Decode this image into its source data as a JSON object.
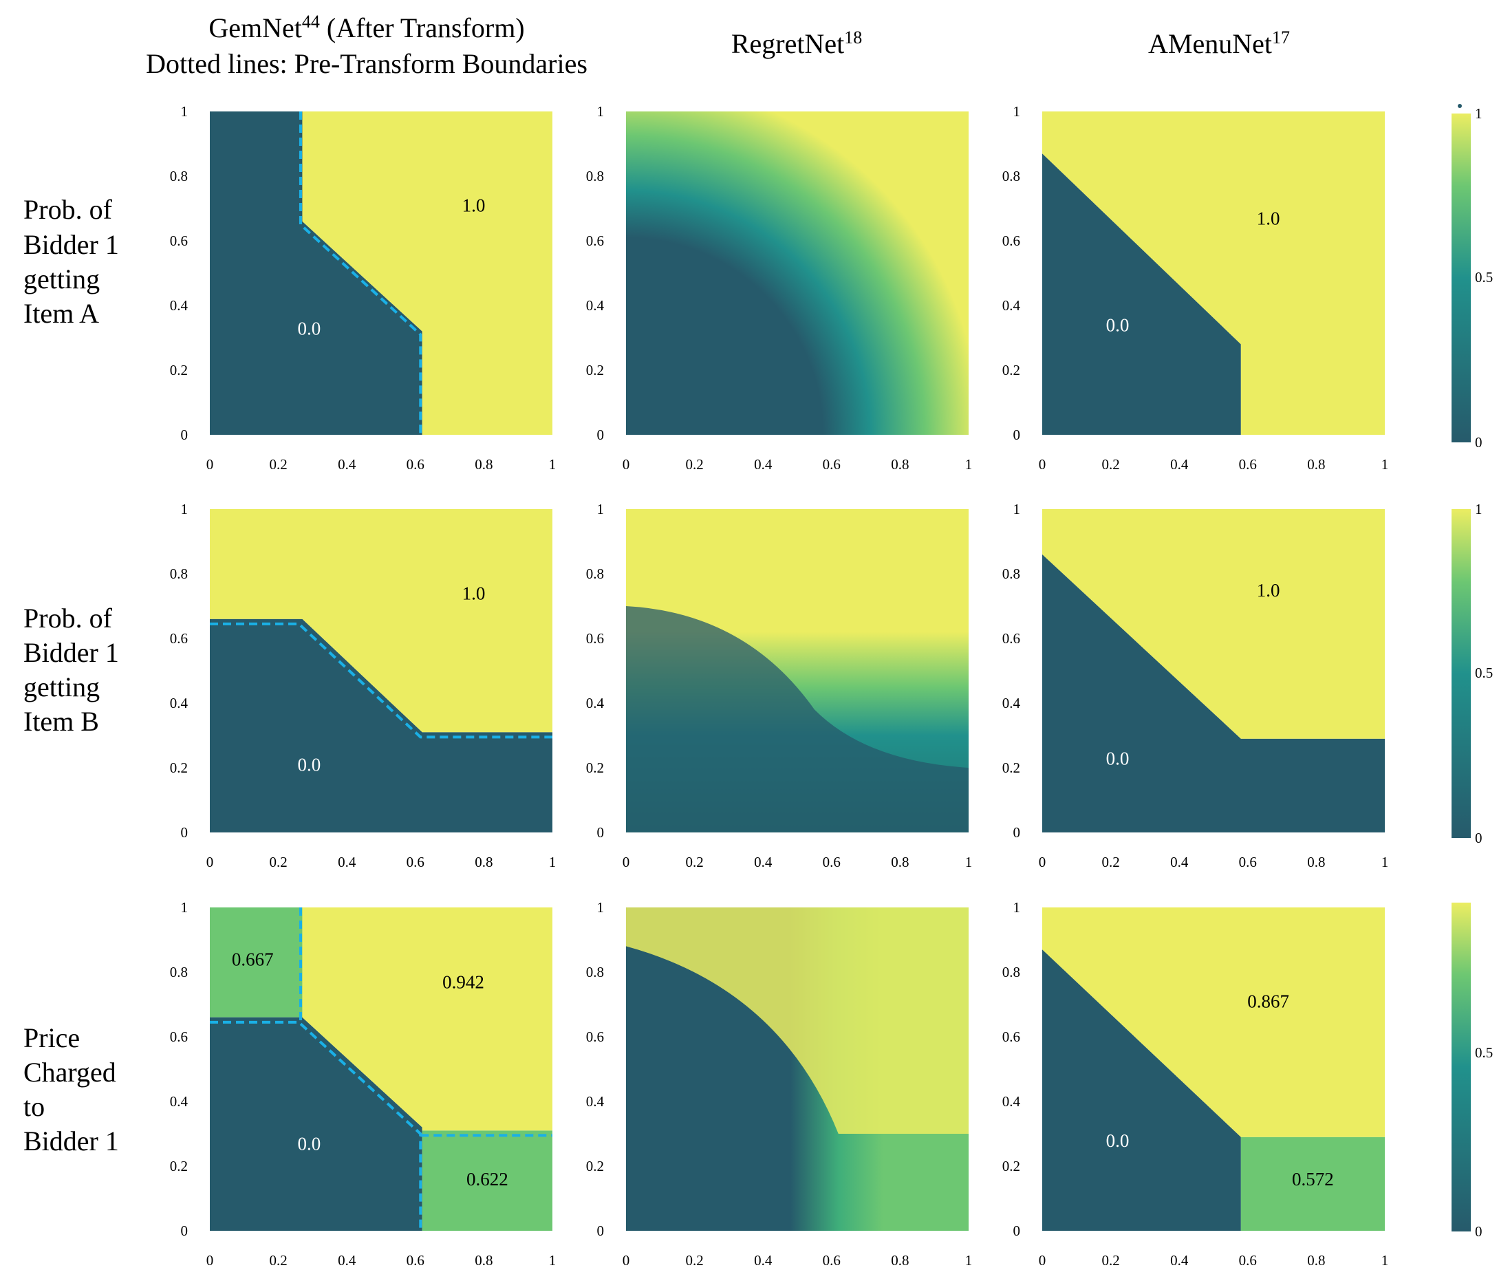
{
  "column_titles": [
    {
      "line1_main": "GemNet",
      "line1_sup": "44",
      "line1_tail": " (After Transform)",
      "line2": "Dotted lines: Pre-Transform Boundaries"
    },
    {
      "line1_main": "RegretNet",
      "line1_sup": "18",
      "line1_tail": "",
      "line2": ""
    },
    {
      "line1_main": "AMenuNet",
      "line1_sup": "17",
      "line1_tail": "",
      "line2": ""
    }
  ],
  "row_labels": [
    [
      "Prob. of",
      "Bidder 1",
      "getting",
      "Item A"
    ],
    [
      "Prob. of",
      "Bidder 1",
      "getting",
      "Item B"
    ],
    [
      "Price",
      "Charged",
      "to",
      "Bidder 1"
    ]
  ],
  "colors": {
    "dark": "#265a6b",
    "yellow": "#ebed62",
    "green": "#6dc772",
    "teal": "#21918c",
    "boundary": "#1ab0e6"
  },
  "colorbars": [
    {
      "top": "1",
      "mid": "0.5",
      "bottom": "0"
    },
    {
      "top": "1",
      "mid": "0.5",
      "bottom": "0"
    },
    {
      "top": "",
      "mid": "0.5",
      "bottom": "0"
    }
  ],
  "chart_data": {
    "type": "heatmap",
    "x_ticks": [
      "0",
      "0.2",
      "0.4",
      "0.6",
      "0.8",
      "1"
    ],
    "y_ticks": [
      "0",
      "0.2",
      "0.4",
      "0.6",
      "0.8",
      "1"
    ],
    "xlim": [
      0,
      1
    ],
    "ylim": [
      0,
      1
    ],
    "colorbar_range": [
      0,
      1
    ],
    "panels": [
      {
        "row": 0,
        "col": 0,
        "regions": [
          {
            "value": 0.0,
            "label": "0.0",
            "polygon": [
              [
                0,
                0
              ],
              [
                0.62,
                0
              ],
              [
                0.62,
                0.32
              ],
              [
                0.27,
                0.66
              ],
              [
                0.27,
                1
              ],
              [
                0,
                1
              ]
            ]
          },
          {
            "value": 1.0,
            "label": "1.0",
            "polygon": [
              [
                0.62,
                0
              ],
              [
                1,
                0
              ],
              [
                1,
                1
              ],
              [
                0.27,
                1
              ],
              [
                0.27,
                0.66
              ],
              [
                0.62,
                0.32
              ]
            ]
          }
        ],
        "label_positions": [
          [
            0.29,
            0.31
          ],
          [
            0.77,
            0.69
          ]
        ],
        "dotted_boundary": [
          [
            0.265,
            1
          ],
          [
            0.265,
            0.65
          ],
          [
            0.615,
            0.31
          ],
          [
            0.615,
            0
          ]
        ]
      },
      {
        "row": 0,
        "col": 1,
        "smooth": "itemA"
      },
      {
        "row": 0,
        "col": 2,
        "regions": [
          {
            "value": 0.0,
            "label": "0.0",
            "polygon": [
              [
                0,
                0
              ],
              [
                0.58,
                0
              ],
              [
                0.58,
                0.28
              ],
              [
                0,
                0.87
              ]
            ]
          },
          {
            "value": 1.0,
            "label": "1.0",
            "polygon": [
              [
                0.58,
                0
              ],
              [
                1,
                0
              ],
              [
                1,
                1
              ],
              [
                0,
                1
              ],
              [
                0,
                0.87
              ],
              [
                0.58,
                0.28
              ]
            ]
          }
        ],
        "label_positions": [
          [
            0.22,
            0.32
          ],
          [
            0.66,
            0.65
          ]
        ]
      },
      {
        "row": 1,
        "col": 0,
        "regions": [
          {
            "value": 0.0,
            "label": "0.0",
            "polygon": [
              [
                0,
                0
              ],
              [
                1,
                0
              ],
              [
                1,
                0.31
              ],
              [
                0.62,
                0.31
              ],
              [
                0.27,
                0.66
              ],
              [
                0,
                0.66
              ]
            ]
          },
          {
            "value": 1.0,
            "label": "1.0",
            "polygon": [
              [
                0,
                0.66
              ],
              [
                0.27,
                0.66
              ],
              [
                0.62,
                0.31
              ],
              [
                1,
                0.31
              ],
              [
                1,
                1
              ],
              [
                0,
                1
              ]
            ]
          }
        ],
        "label_positions": [
          [
            0.29,
            0.19
          ],
          [
            0.77,
            0.72
          ]
        ],
        "dotted_boundary": [
          [
            0,
            0.645
          ],
          [
            0.26,
            0.645
          ],
          [
            0.615,
            0.295
          ],
          [
            1,
            0.295
          ]
        ]
      },
      {
        "row": 1,
        "col": 1,
        "smooth": "itemB"
      },
      {
        "row": 1,
        "col": 2,
        "regions": [
          {
            "value": 0.0,
            "label": "0.0",
            "polygon": [
              [
                0,
                0
              ],
              [
                1,
                0
              ],
              [
                1,
                0.29
              ],
              [
                0.58,
                0.29
              ],
              [
                0,
                0.86
              ]
            ]
          },
          {
            "value": 1.0,
            "label": "1.0",
            "polygon": [
              [
                0,
                0.86
              ],
              [
                0.58,
                0.29
              ],
              [
                1,
                0.29
              ],
              [
                1,
                1
              ],
              [
                0,
                1
              ]
            ]
          }
        ],
        "label_positions": [
          [
            0.22,
            0.21
          ],
          [
            0.66,
            0.73
          ]
        ]
      },
      {
        "row": 2,
        "col": 0,
        "regions": [
          {
            "value": 0.667,
            "label": "0.667",
            "polygon": [
              [
                0,
                0.66
              ],
              [
                0.27,
                0.66
              ],
              [
                0.27,
                1
              ],
              [
                0,
                1
              ]
            ]
          },
          {
            "value": 0.0,
            "label": "0.0",
            "polygon": [
              [
                0,
                0
              ],
              [
                0.62,
                0
              ],
              [
                0.62,
                0.32
              ],
              [
                0.27,
                0.66
              ],
              [
                0,
                0.66
              ]
            ]
          },
          {
            "value": 0.622,
            "label": "0.622",
            "polygon": [
              [
                0.62,
                0
              ],
              [
                1,
                0
              ],
              [
                1,
                0.31
              ],
              [
                0.62,
                0.31
              ]
            ]
          },
          {
            "value": 0.942,
            "label": "0.942",
            "polygon": [
              [
                0.27,
                0.66
              ],
              [
                0.27,
                1
              ],
              [
                1,
                1
              ],
              [
                1,
                0.31
              ],
              [
                0.62,
                0.31
              ],
              [
                0.62,
                0.32
              ]
            ]
          }
        ],
        "label_positions": [
          [
            0.125,
            0.82
          ],
          [
            0.29,
            0.25
          ],
          [
            0.81,
            0.14
          ],
          [
            0.74,
            0.75
          ]
        ],
        "dotted_boundary_segments": [
          [
            [
              0.265,
              1
            ],
            [
              0.265,
              0.645
            ]
          ],
          [
            [
              0,
              0.645
            ],
            [
              0.26,
              0.645
            ],
            [
              0.615,
              0.3
            ],
            [
              0.615,
              0
            ]
          ],
          [
            [
              0.615,
              0.295
            ],
            [
              1,
              0.295
            ]
          ]
        ]
      },
      {
        "row": 2,
        "col": 1,
        "smooth": "price"
      },
      {
        "row": 2,
        "col": 2,
        "regions": [
          {
            "value": 0.0,
            "label": "0.0",
            "polygon": [
              [
                0,
                0
              ],
              [
                0.58,
                0
              ],
              [
                0.58,
                0.29
              ],
              [
                0,
                0.87
              ]
            ]
          },
          {
            "value": 0.572,
            "label": "0.572",
            "polygon": [
              [
                0.58,
                0
              ],
              [
                1,
                0
              ],
              [
                1,
                0.29
              ],
              [
                0.58,
                0.29
              ]
            ]
          },
          {
            "value": 0.867,
            "label": "0.867",
            "polygon": [
              [
                0,
                0.87
              ],
              [
                0.58,
                0.29
              ],
              [
                1,
                0.29
              ],
              [
                1,
                1
              ],
              [
                0,
                1
              ]
            ]
          }
        ],
        "label_positions": [
          [
            0.22,
            0.26
          ],
          [
            0.79,
            0.14
          ],
          [
            0.66,
            0.69
          ]
        ]
      }
    ]
  }
}
